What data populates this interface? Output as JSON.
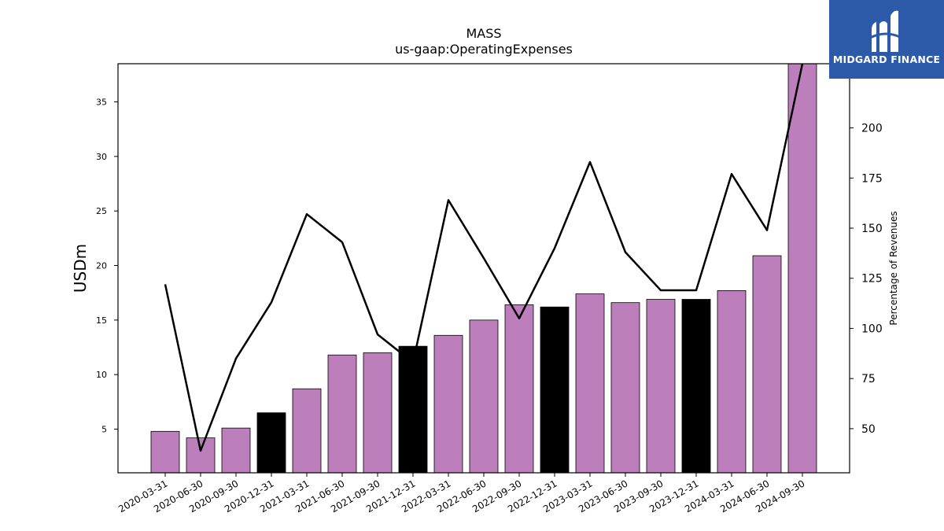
{
  "logo": {
    "text": "MIDGARD FINANCE"
  },
  "chart_data": {
    "type": "bar",
    "title": "MASS",
    "subtitle": "us-gaap:OperatingExpenses",
    "ylabel": "USDm",
    "y2label": "Percentage of Revenues",
    "ylim": [
      1.0,
      38.5
    ],
    "y2lim": [
      28,
      232
    ],
    "yticks": [
      5,
      10,
      15,
      20,
      25,
      30,
      35
    ],
    "y2ticks": [
      50,
      75,
      100,
      125,
      150,
      175,
      200
    ],
    "grid": false,
    "categories": [
      "2020-03-31",
      "2020-06-30",
      "2020-09-30",
      "2020-12-31",
      "2021-03-31",
      "2021-06-30",
      "2021-09-30",
      "2021-12-31",
      "2022-03-31",
      "2022-06-30",
      "2022-09-30",
      "2022-12-31",
      "2023-03-31",
      "2023-06-30",
      "2023-09-30",
      "2023-12-31",
      "2024-03-31",
      "2024-06-30",
      "2024-09-30"
    ],
    "series": [
      {
        "type": "bar",
        "axis": "left",
        "values": [
          4.8,
          4.2,
          5.1,
          6.5,
          8.7,
          11.8,
          12.0,
          12.6,
          13.6,
          15.0,
          16.4,
          16.2,
          17.4,
          16.6,
          16.9,
          16.9,
          17.7,
          20.9,
          38.5
        ],
        "colors": [
          "#bc7fbc",
          "#bc7fbc",
          "#bc7fbc",
          "#000000",
          "#bc7fbc",
          "#bc7fbc",
          "#bc7fbc",
          "#000000",
          "#bc7fbc",
          "#bc7fbc",
          "#bc7fbc",
          "#000000",
          "#bc7fbc",
          "#bc7fbc",
          "#bc7fbc",
          "#000000",
          "#bc7fbc",
          "#bc7fbc",
          "#bc7fbc"
        ]
      },
      {
        "type": "line",
        "axis": "right",
        "color": "#000000",
        "values": [
          122,
          39,
          85,
          113,
          157,
          143,
          97,
          83,
          164,
          135,
          105,
          140,
          183,
          138,
          119,
          119,
          177,
          149,
          232
        ]
      }
    ]
  }
}
